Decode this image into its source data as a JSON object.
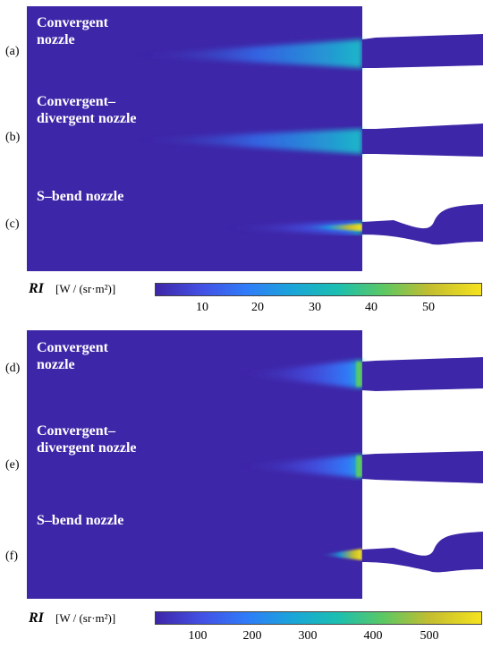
{
  "top": {
    "rows": [
      {
        "label": "(a)",
        "title_line1": "Convergent",
        "title_line2": "nozzle"
      },
      {
        "label": "(b)",
        "title_line1": "Convergent–",
        "title_line2": "divergent nozzle"
      },
      {
        "label": "(c)",
        "title_line1": "S–bend nozzle",
        "title_line2": ""
      }
    ],
    "colorbar": {
      "symbol": "RI",
      "unit": "[W / (sr·m²)]",
      "ticks": [
        "10",
        "20",
        "30",
        "40",
        "50"
      ]
    }
  },
  "bottom": {
    "rows": [
      {
        "label": "(d)",
        "title_line1": "Convergent",
        "title_line2": "nozzle"
      },
      {
        "label": "(e)",
        "title_line1": "Convergent–",
        "title_line2": "divergent nozzle"
      },
      {
        "label": "(f)",
        "title_line1": "S–bend nozzle",
        "title_line2": ""
      }
    ],
    "colorbar": {
      "symbol": "RI",
      "unit": "[W / (sr·m²)]",
      "ticks": [
        "100",
        "200",
        "300",
        "400",
        "500"
      ]
    }
  },
  "colors": {
    "background": "#3e26a8",
    "plume_low": "#2f7cf9",
    "plume_mid": "#1bbfb0",
    "plume_high": "#f5e21e",
    "nozzle": "#3e26a8"
  }
}
